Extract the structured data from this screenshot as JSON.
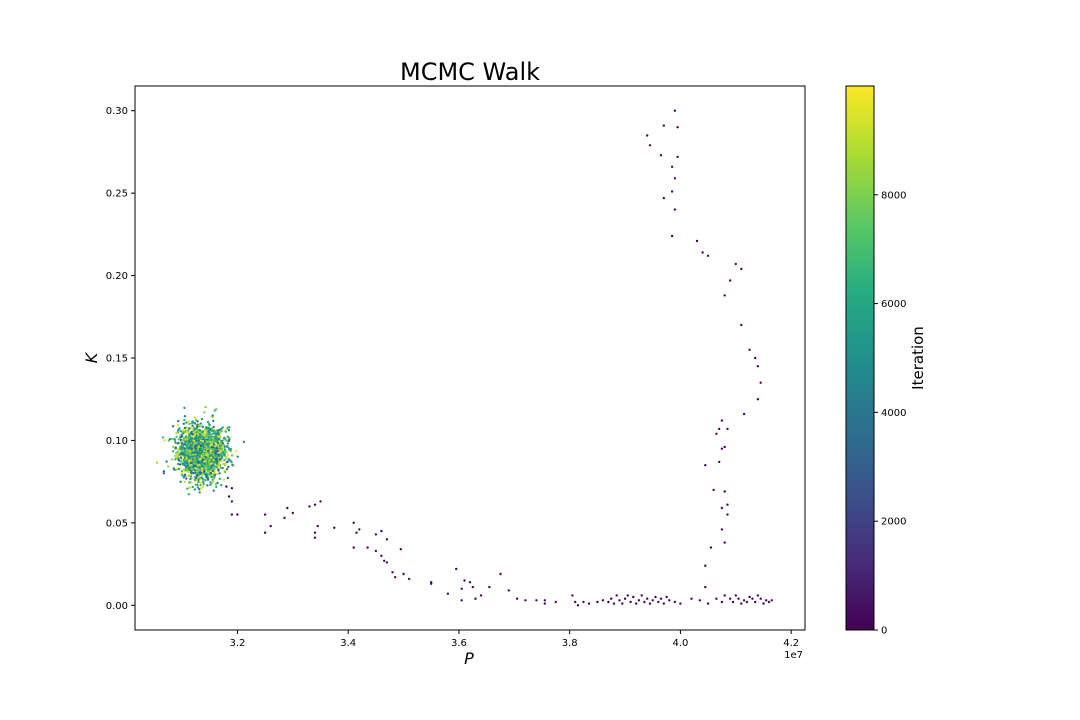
{
  "chart_data": {
    "type": "scatter",
    "title": "MCMC Walk",
    "xlabel": "P",
    "ylabel": "K",
    "x_offset_label": "1e7",
    "xlim": [
      3.015,
      4.225
    ],
    "ylim": [
      -0.015,
      0.315
    ],
    "x_tick_labels": [
      "3.2",
      "3.4",
      "3.6",
      "3.8",
      "4.0",
      "4.2"
    ],
    "y_tick_labels": [
      "0.00",
      "0.05",
      "0.10",
      "0.15",
      "0.20",
      "0.25",
      "0.30"
    ],
    "grid": false,
    "colorbar": {
      "label": "Iteration",
      "colormap": "viridis",
      "range": [
        0,
        10000
      ],
      "tick_labels": [
        "0",
        "2000",
        "4000",
        "6000",
        "8000"
      ]
    },
    "series": [
      {
        "color_value": 200,
        "points": [
          [
            3.99,
            0.3
          ],
          [
            3.97,
            0.291
          ],
          [
            3.995,
            0.29
          ],
          [
            3.94,
            0.285
          ],
          [
            3.945,
            0.279
          ],
          [
            3.965,
            0.273
          ],
          [
            3.995,
            0.272
          ],
          [
            3.985,
            0.266
          ],
          [
            3.99,
            0.259
          ],
          [
            3.985,
            0.251
          ],
          [
            3.97,
            0.247
          ],
          [
            3.99,
            0.24
          ],
          [
            3.985,
            0.224
          ],
          [
            4.03,
            0.221
          ],
          [
            4.04,
            0.214
          ],
          [
            4.05,
            0.212
          ],
          [
            4.1,
            0.207
          ],
          [
            4.11,
            0.204
          ],
          [
            4.09,
            0.197
          ],
          [
            4.08,
            0.188
          ],
          [
            4.11,
            0.17
          ],
          [
            4.125,
            0.155
          ],
          [
            4.135,
            0.15
          ],
          [
            4.14,
            0.145
          ],
          [
            4.145,
            0.135
          ],
          [
            4.14,
            0.125
          ],
          [
            4.115,
            0.116
          ],
          [
            4.075,
            0.112
          ],
          [
            4.07,
            0.107
          ],
          [
            4.085,
            0.107
          ],
          [
            4.065,
            0.104
          ],
          [
            4.075,
            0.095
          ],
          [
            4.08,
            0.096
          ],
          [
            4.07,
            0.087
          ],
          [
            4.045,
            0.085
          ],
          [
            4.06,
            0.07
          ],
          [
            4.08,
            0.069
          ],
          [
            4.085,
            0.061
          ],
          [
            4.075,
            0.059
          ],
          [
            4.085,
            0.055
          ],
          [
            4.075,
            0.046
          ],
          [
            4.08,
            0.038
          ],
          [
            4.055,
            0.035
          ],
          [
            4.045,
            0.024
          ],
          [
            4.045,
            0.011
          ],
          [
            3.18,
            0.072
          ],
          [
            3.19,
            0.071
          ],
          [
            3.185,
            0.066
          ],
          [
            3.19,
            0.063
          ],
          [
            3.19,
            0.055
          ],
          [
            3.2,
            0.055
          ],
          [
            3.25,
            0.055
          ],
          [
            3.25,
            0.044
          ],
          [
            3.26,
            0.048
          ],
          [
            3.29,
            0.059
          ],
          [
            3.285,
            0.053
          ],
          [
            3.3,
            0.056
          ],
          [
            3.33,
            0.06
          ],
          [
            3.34,
            0.061
          ],
          [
            3.35,
            0.063
          ],
          [
            3.345,
            0.048
          ],
          [
            3.34,
            0.044
          ],
          [
            3.34,
            0.041
          ],
          [
            3.375,
            0.047
          ],
          [
            3.41,
            0.05
          ],
          [
            3.42,
            0.046
          ],
          [
            3.415,
            0.044
          ],
          [
            3.45,
            0.043
          ],
          [
            3.46,
            0.045
          ],
          [
            3.47,
            0.04
          ],
          [
            3.41,
            0.035
          ],
          [
            3.435,
            0.035
          ],
          [
            3.45,
            0.033
          ],
          [
            3.46,
            0.03
          ],
          [
            3.465,
            0.027
          ],
          [
            3.47,
            0.026
          ],
          [
            3.48,
            0.02
          ],
          [
            3.485,
            0.017
          ],
          [
            3.495,
            0.034
          ],
          [
            3.5,
            0.019
          ],
          [
            3.51,
            0.016
          ],
          [
            3.55,
            0.014
          ],
          [
            3.55,
            0.013
          ],
          [
            3.58,
            0.007
          ],
          [
            3.595,
            0.022
          ],
          [
            3.605,
            0.01
          ],
          [
            3.605,
            0.003
          ],
          [
            3.61,
            0.015
          ],
          [
            3.62,
            0.014
          ],
          [
            3.625,
            0.011
          ],
          [
            3.63,
            0.004
          ],
          [
            3.64,
            0.006
          ],
          [
            3.655,
            0.011
          ],
          [
            3.675,
            0.019
          ],
          [
            3.69,
            0.009
          ],
          [
            3.705,
            0.004
          ],
          [
            3.72,
            0.003
          ],
          [
            3.74,
            0.003
          ],
          [
            3.755,
            0.003
          ],
          [
            3.755,
            0.001
          ],
          [
            3.775,
            0.002
          ],
          [
            3.805,
            0.006
          ],
          [
            3.81,
            0.002
          ],
          [
            3.815,
            0.0
          ],
          [
            3.825,
            0.002
          ],
          [
            3.835,
            0.001
          ],
          [
            3.85,
            0.002
          ],
          [
            3.86,
            0.003
          ],
          [
            3.87,
            0.002
          ],
          [
            3.875,
            0.004
          ],
          [
            3.88,
            0.001
          ],
          [
            3.885,
            0.006
          ],
          [
            3.89,
            0.003
          ],
          [
            3.895,
            0.001
          ],
          [
            3.9,
            0.004
          ],
          [
            3.905,
            0.006
          ],
          [
            3.91,
            0.002
          ],
          [
            3.915,
            0.005
          ],
          [
            3.92,
            0.001
          ],
          [
            3.925,
            0.003
          ],
          [
            3.93,
            0.006
          ],
          [
            3.935,
            0.002
          ],
          [
            3.94,
            0.004
          ],
          [
            3.945,
            0.001
          ],
          [
            3.95,
            0.003
          ],
          [
            3.955,
            0.005
          ],
          [
            3.96,
            0.002
          ],
          [
            3.965,
            0.004
          ],
          [
            3.97,
            0.001
          ],
          [
            3.975,
            0.005
          ],
          [
            3.98,
            0.003
          ],
          [
            3.99,
            0.002
          ],
          [
            4.0,
            0.001
          ],
          [
            4.02,
            0.004
          ],
          [
            4.035,
            0.003
          ],
          [
            4.05,
            0.001
          ],
          [
            4.065,
            0.004
          ],
          [
            4.075,
            0.002
          ],
          [
            4.08,
            0.006
          ],
          [
            4.09,
            0.004
          ],
          [
            4.095,
            0.002
          ],
          [
            4.1,
            0.006
          ],
          [
            4.105,
            0.004
          ],
          [
            4.11,
            0.001
          ],
          [
            4.115,
            0.003
          ],
          [
            4.12,
            0.002
          ],
          [
            4.125,
            0.005
          ],
          [
            4.13,
            0.004
          ],
          [
            4.135,
            0.002
          ],
          [
            4.14,
            0.006
          ],
          [
            4.145,
            0.004
          ],
          [
            4.15,
            0.001
          ],
          [
            4.155,
            0.003
          ],
          [
            4.16,
            0.002
          ],
          [
            4.165,
            0.003
          ]
        ]
      }
    ],
    "cluster": {
      "center": [
        3.135,
        0.093
      ],
      "spread": [
        0.025,
        0.0095
      ],
      "count": 2200,
      "color_range": [
        3000,
        10000
      ]
    }
  }
}
